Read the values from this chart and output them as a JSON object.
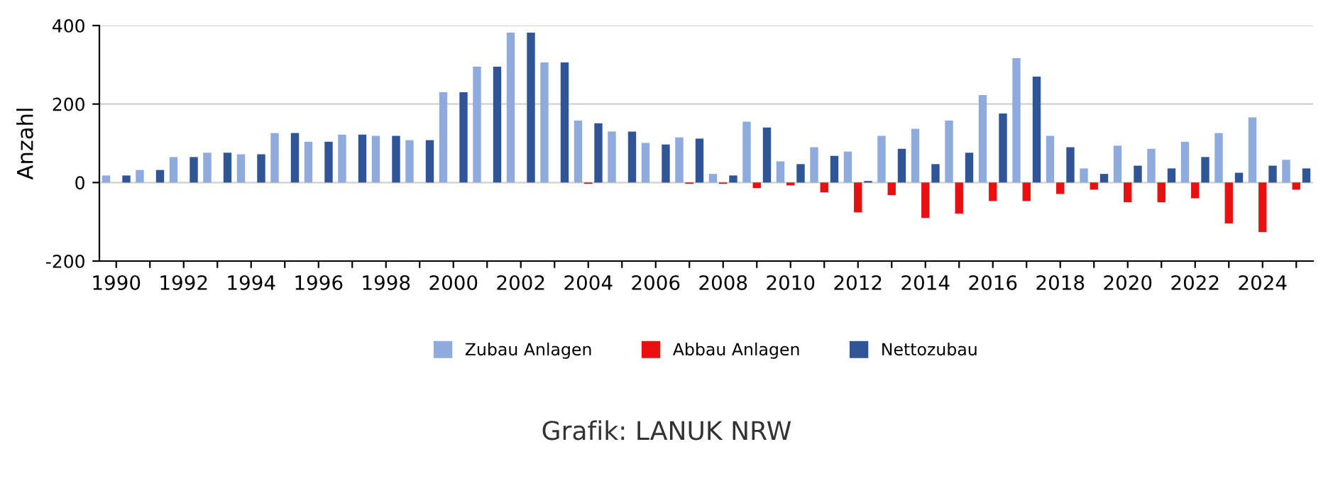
{
  "chart_data": {
    "type": "bar",
    "ylabel": "Anzahl",
    "categories": [
      "1990",
      null,
      "1992",
      null,
      "1994",
      null,
      "1996",
      null,
      "1998",
      null,
      "2000",
      null,
      "2002",
      null,
      "2004",
      null,
      "2006",
      null,
      "2008",
      null,
      "2010",
      null,
      "2012",
      null,
      "2014",
      null,
      "2016",
      null,
      "2018",
      null,
      "2020",
      null,
      "2022",
      null,
      "2024",
      null
    ],
    "series": [
      {
        "name": "Zubau Anlagen",
        "color": "#8faadc",
        "values": [
          18,
          32,
          65,
          76,
          72,
          126,
          104,
          122,
          119,
          108,
          230,
          295,
          382,
          306,
          158,
          130,
          101,
          115,
          22,
          155,
          54,
          90,
          79,
          119,
          137,
          158,
          223,
          317,
          119,
          36,
          94,
          86,
          104,
          126,
          166,
          58
        ]
      },
      {
        "name": "Abbau Anlagen",
        "color": "#e81010",
        "values": [
          0,
          0,
          0,
          0,
          0,
          0,
          0,
          0,
          0,
          0,
          0,
          0,
          0,
          0,
          -3,
          0,
          0,
          -3,
          -3,
          -14,
          -7,
          -25,
          -76,
          -32,
          -90,
          -79,
          -47,
          -47,
          -29,
          -18,
          -50,
          -50,
          -40,
          -104,
          -126,
          -18
        ]
      },
      {
        "name": "Nettozubau",
        "color": "#2f5597",
        "values": [
          18,
          32,
          65,
          76,
          72,
          126,
          104,
          122,
          119,
          108,
          230,
          295,
          382,
          306,
          151,
          130,
          97,
          112,
          18,
          140,
          47,
          68,
          4,
          86,
          47,
          76,
          176,
          270,
          90,
          22,
          43,
          36,
          65,
          25,
          43,
          36
        ]
      }
    ],
    "ylim": [
      -200,
      400
    ],
    "yticks": [
      -200,
      0,
      200,
      400
    ],
    "grid": "y",
    "legend": "bottom",
    "annotations": [
      "Grafik: LANUK NRW"
    ]
  }
}
